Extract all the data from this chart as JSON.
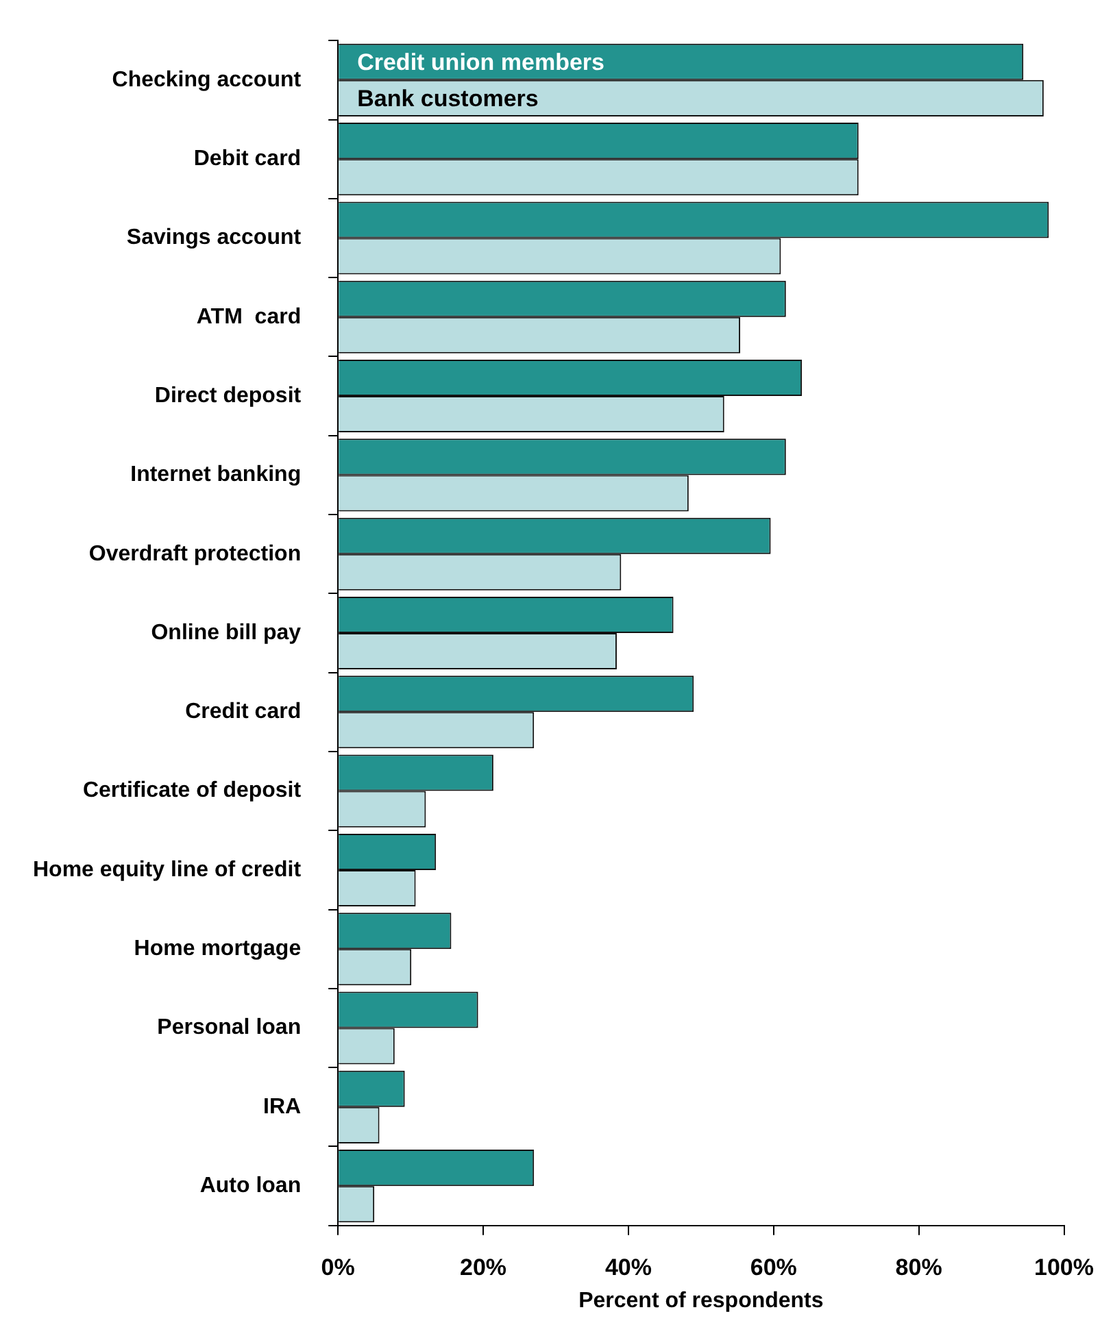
{
  "chart_data": {
    "type": "bar",
    "orientation": "horizontal",
    "xlabel": "Percent of respondents",
    "categories": [
      "Checking account",
      "Debit card",
      "Savings account",
      "ATM  card",
      "Direct deposit",
      "Internet banking",
      "Overdraft protection",
      "Online bill pay",
      "Credit card",
      "Certificate of deposit",
      "Home equity line of credit",
      "Home mortgage",
      "Personal loan",
      "IRA",
      "Auto loan"
    ],
    "series": [
      {
        "name": "Credit union members",
        "color": "#23938f",
        "values": [
          94.4,
          71.7,
          97.9,
          61.7,
          63.9,
          61.7,
          59.6,
          46.2,
          49.0,
          21.4,
          13.5,
          15.6,
          19.3,
          9.2,
          27.0
        ]
      },
      {
        "name": "Bank customers",
        "color": "#b9dde0",
        "values": [
          97.2,
          71.7,
          61.0,
          55.4,
          53.2,
          48.3,
          39.0,
          38.4,
          27.0,
          12.1,
          10.7,
          10.1,
          7.8,
          5.7,
          5.0
        ]
      }
    ],
    "xlim": [
      0,
      100
    ],
    "xticks": [
      {
        "value": 0,
        "label": "0%"
      },
      {
        "value": 20,
        "label": "20%"
      },
      {
        "value": 40,
        "label": "40%"
      },
      {
        "value": 60,
        "label": "60%"
      },
      {
        "value": 80,
        "label": "80%"
      },
      {
        "value": 100,
        "label": "100%"
      }
    ],
    "grid": false,
    "legend": "top left"
  }
}
